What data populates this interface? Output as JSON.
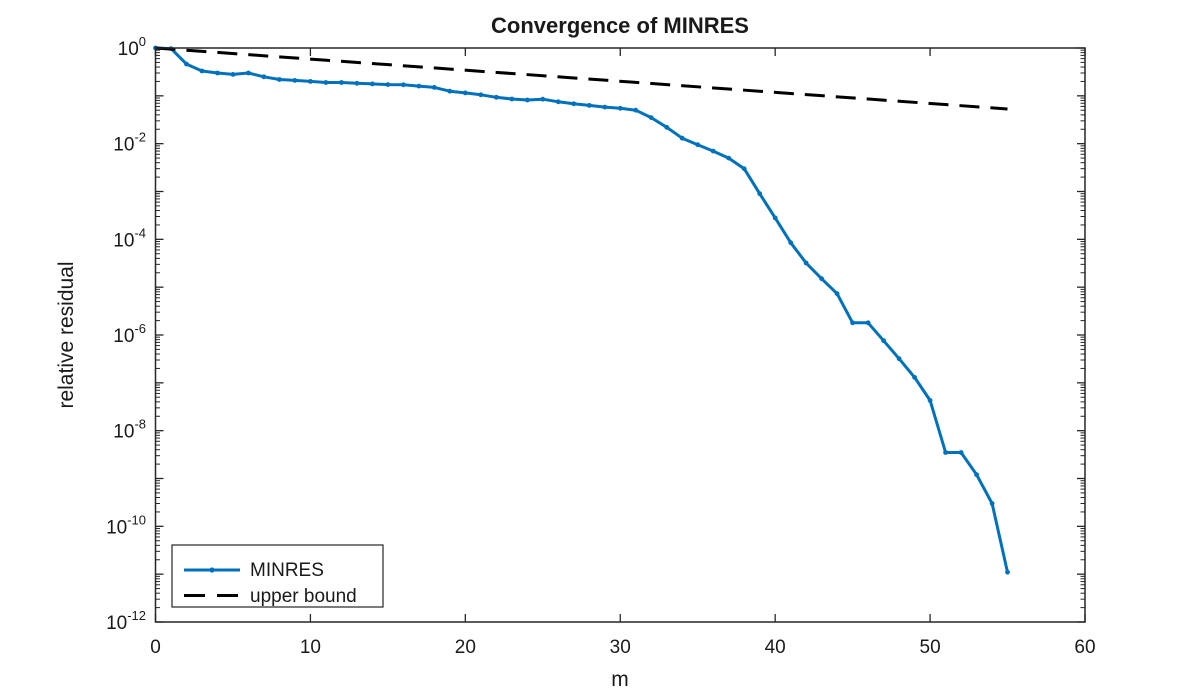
{
  "figure": {
    "title": "Convergence of MINRES",
    "xlabel": "m",
    "ylabel": "relative residual",
    "background": "#ffffff",
    "axis_color": "#262626",
    "text_color": "#1a1a1a",
    "legend": {
      "items": [
        {
          "label": "MINRES",
          "line_style": "solid",
          "marker": "dot",
          "color": "#0072BD"
        },
        {
          "label": "upper bound",
          "line_style": "dashed",
          "marker": "none",
          "color": "#000000"
        }
      ]
    }
  },
  "chart_data": {
    "type": "line",
    "title": "Convergence of MINRES",
    "xlabel": "m",
    "ylabel": "relative residual",
    "x_scale": "linear",
    "y_scale": "log10",
    "xlim": [
      0,
      60
    ],
    "ylim_exponents": [
      -12,
      0
    ],
    "x_ticks": [
      0,
      10,
      20,
      30,
      40,
      50,
      60
    ],
    "y_tick_exponents": [
      0,
      -2,
      -4,
      -6,
      -8,
      -10,
      -12
    ],
    "grid": false,
    "legend_position": "lower-left",
    "series": [
      {
        "name": "MINRES",
        "style": "solid",
        "marker": "dot",
        "color": "#0072BD",
        "x": [
          0,
          1,
          2,
          3,
          4,
          5,
          6,
          7,
          8,
          9,
          10,
          11,
          12,
          13,
          14,
          15,
          16,
          17,
          18,
          19,
          20,
          21,
          22,
          23,
          24,
          25,
          26,
          27,
          28,
          29,
          30,
          31,
          32,
          33,
          34,
          35,
          36,
          37,
          38,
          39,
          40,
          41,
          42,
          43,
          44,
          45,
          46,
          47,
          48,
          49,
          50,
          51,
          52,
          53,
          54,
          55
        ],
        "y": [
          1.0,
          0.97,
          0.46,
          0.33,
          0.3,
          0.28,
          0.3,
          0.25,
          0.22,
          0.21,
          0.2,
          0.19,
          0.19,
          0.183,
          0.178,
          0.172,
          0.17,
          0.16,
          0.15,
          0.125,
          0.115,
          0.105,
          0.093,
          0.086,
          0.082,
          0.085,
          0.075,
          0.068,
          0.063,
          0.058,
          0.055,
          0.05,
          0.035,
          0.022,
          0.013,
          0.0095,
          0.007,
          0.005,
          0.003,
          0.0009,
          0.00028,
          8.5e-05,
          3.2e-05,
          1.5e-05,
          7.3e-06,
          1.8e-06,
          1.8e-06,
          7.6e-07,
          3.2e-07,
          1.3e-07,
          4.3e-08,
          3.5e-09,
          3.5e-09,
          1.2e-09,
          3e-10,
          1.1e-11
        ]
      },
      {
        "name": "upper bound",
        "style": "dashed",
        "marker": "none",
        "color": "#000000",
        "x": [
          0,
          55
        ],
        "y": [
          1.0,
          0.053
        ]
      }
    ]
  }
}
